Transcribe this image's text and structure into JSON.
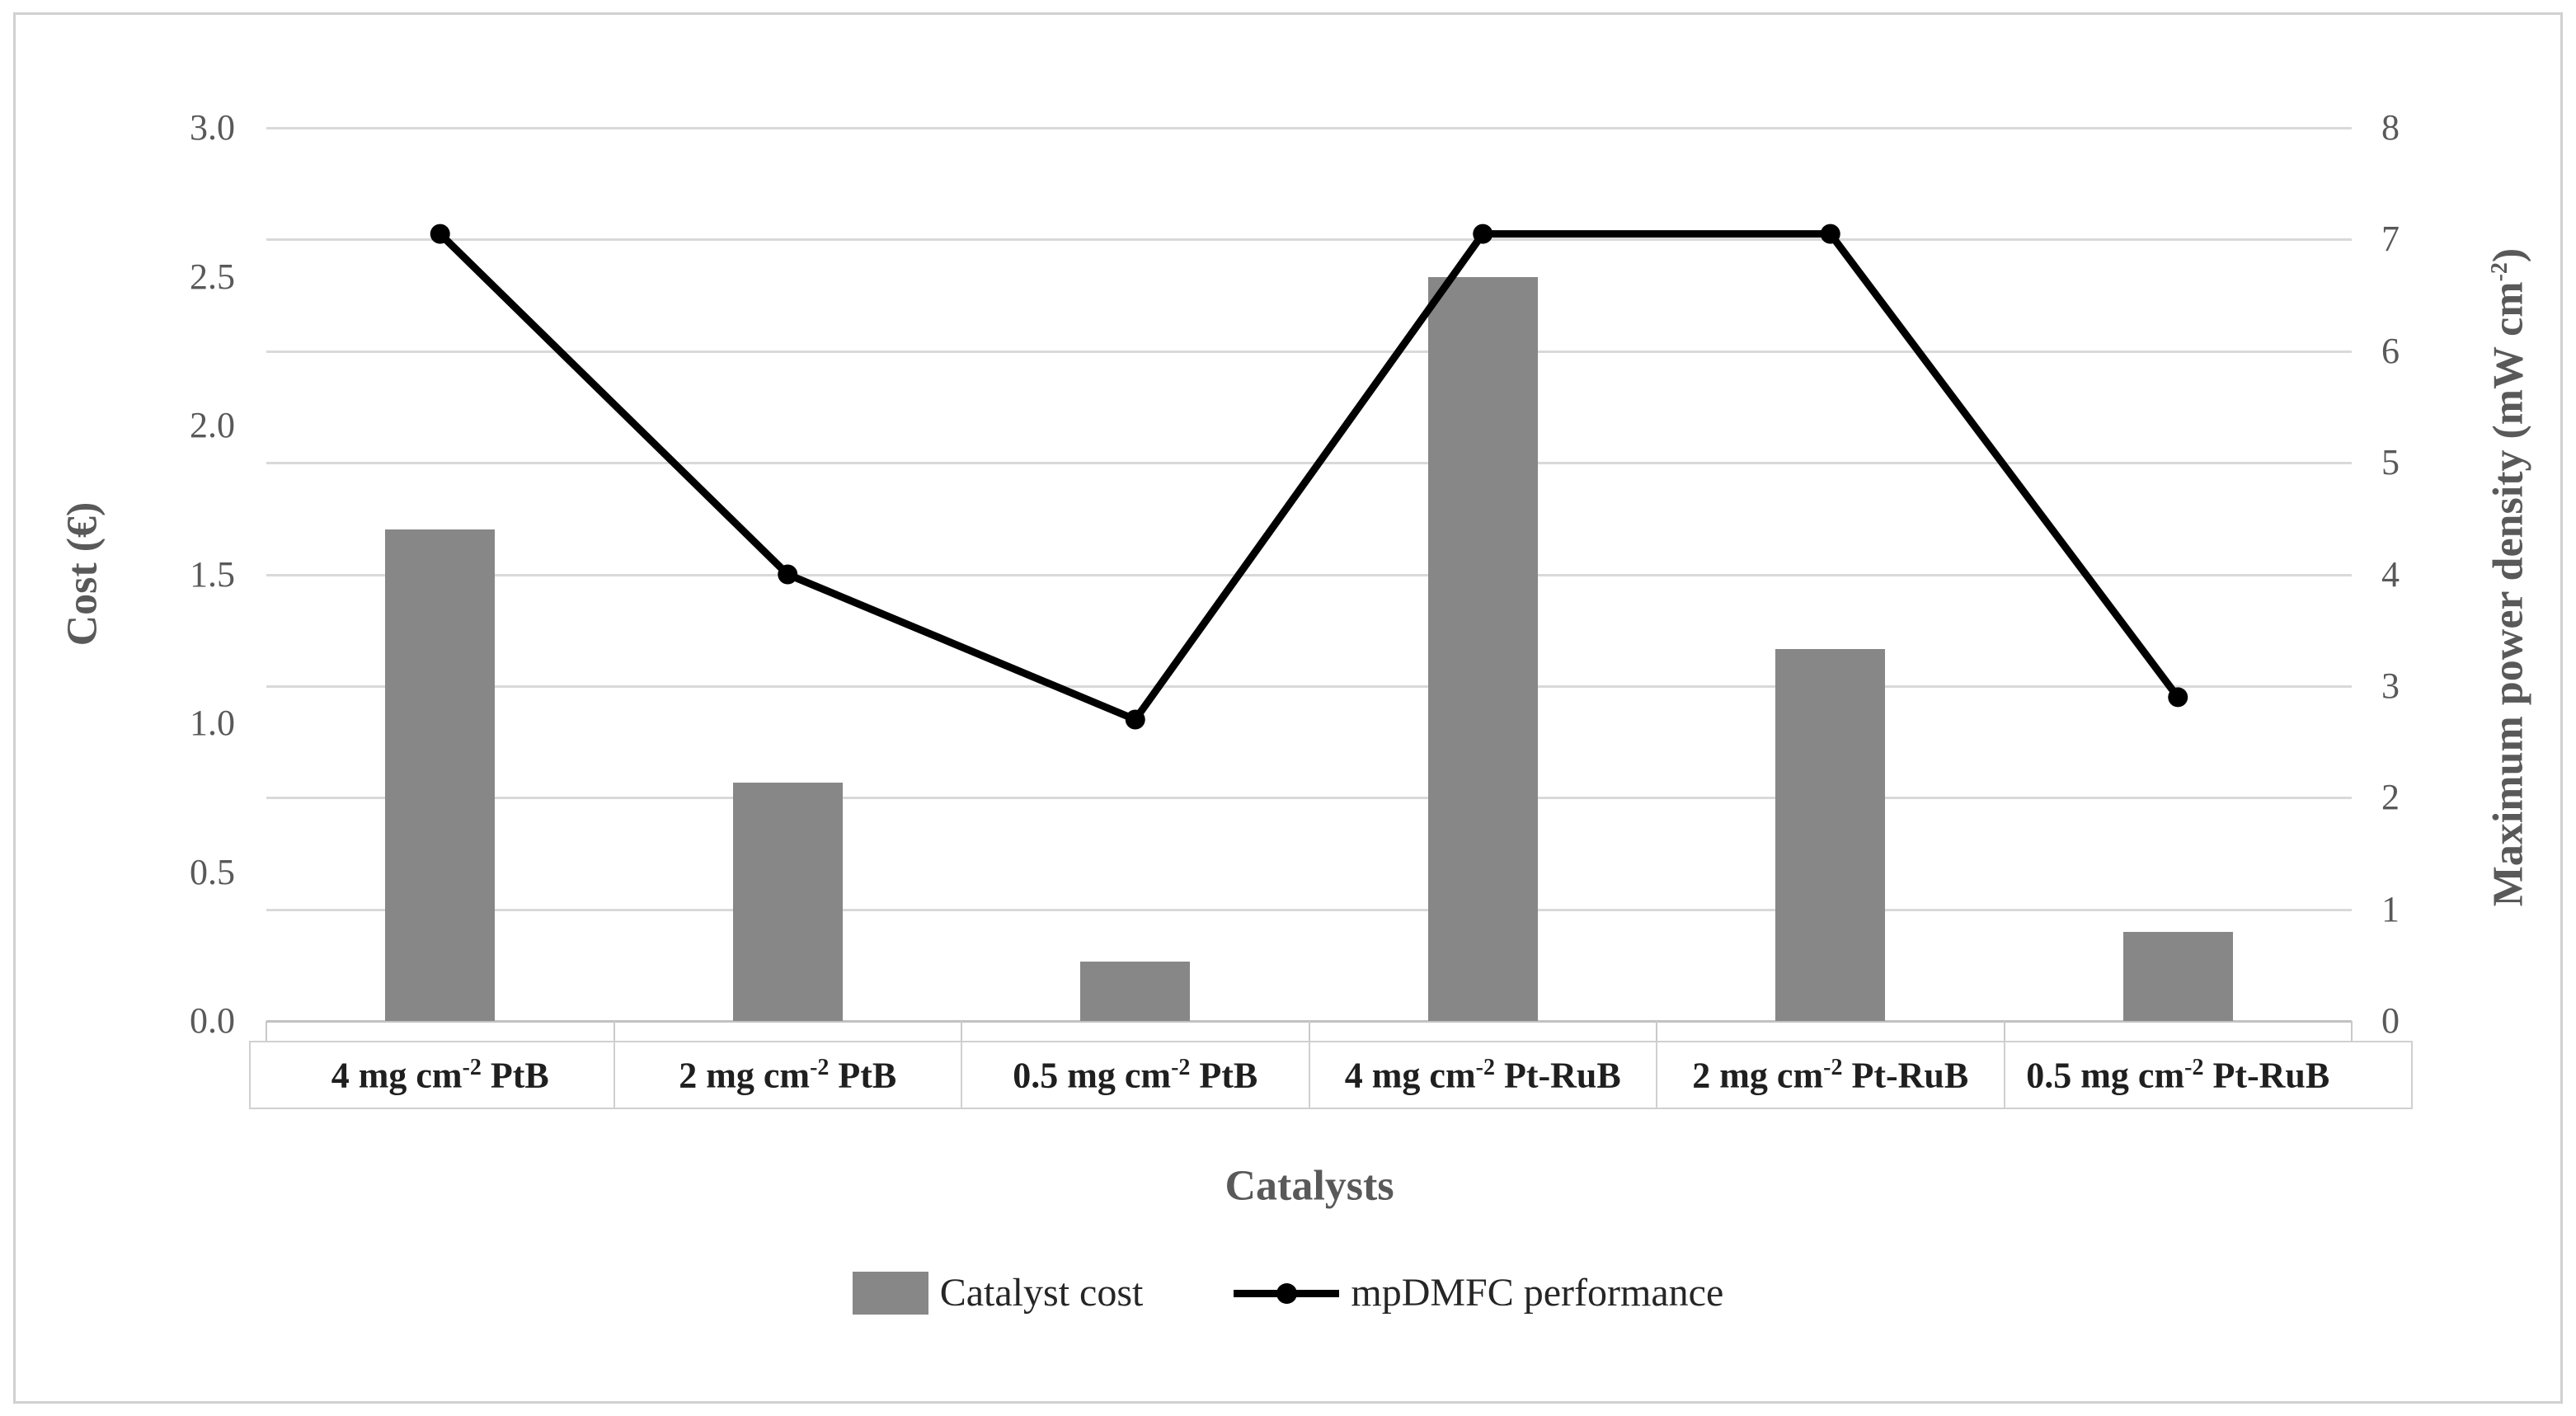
{
  "chart_data": {
    "type": "bar",
    "subtype": "combo-bar-line-dual-axis",
    "title": "",
    "categories": [
      "4 mg cm-2 PtB",
      "2 mg cm-2 PtB",
      "0.5 mg cm-2 PtB",
      "4 mg cm-2 Pt-RuB",
      "2 mg cm-2 Pt-RuB",
      "0.5 mg cm-2 Pt-RuB"
    ],
    "categories_rich": [
      {
        "pre": "4 mg cm",
        "sup": "-2",
        "post": " PtB"
      },
      {
        "pre": "2 mg cm",
        "sup": "-2",
        "post": " PtB"
      },
      {
        "pre": "0.5 mg cm",
        "sup": "-2",
        "post": " PtB"
      },
      {
        "pre": "4 mg cm",
        "sup": "-2",
        "post": " Pt-RuB"
      },
      {
        "pre": "2 mg cm",
        "sup": "-2",
        "post": " Pt-RuB"
      },
      {
        "pre": "0.5 mg cm",
        "sup": "-2",
        "post": " Pt-RuB"
      }
    ],
    "series": [
      {
        "name": "Catalyst cost",
        "type": "bar",
        "axis": "left",
        "color": "#878787",
        "values": [
          1.65,
          0.8,
          0.2,
          2.5,
          1.25,
          0.3
        ]
      },
      {
        "name": "mpDMFC performance",
        "type": "line",
        "axis": "right",
        "color": "#000000",
        "values": [
          7.05,
          4.0,
          2.7,
          7.05,
          7.05,
          2.9
        ]
      }
    ],
    "left_axis": {
      "title": "Cost (€)",
      "min": 0,
      "max": 3,
      "step": 0.5,
      "tick_labels": [
        "0.0",
        "0.5",
        "1.0",
        "1.5",
        "2.0",
        "2.5",
        "3.0"
      ]
    },
    "right_axis": {
      "title": "Maximum power density (mW cm-2)",
      "title_pre": "Maximum power density (mW cm",
      "title_sup": "-2",
      "title_post": ")",
      "min": 0,
      "max": 8,
      "step": 1,
      "tick_labels": [
        "0",
        "1",
        "2",
        "3",
        "4",
        "5",
        "6",
        "7",
        "8"
      ]
    },
    "x_axis": {
      "title": "Catalysts"
    },
    "legend": {
      "position": "bottom",
      "items": [
        "Catalyst cost",
        "mpDMFC performance"
      ]
    },
    "grid": {
      "horizontal": true,
      "follows": "right-axis-integer-ticks",
      "color": "#d9d9d9"
    }
  },
  "colors": {
    "bar": "#878787",
    "line": "#000000",
    "gridline": "#d9d9d9",
    "axis_text": "#595959",
    "category_text": "#1f1f1f",
    "frame_border": "#d2d0d0"
  }
}
